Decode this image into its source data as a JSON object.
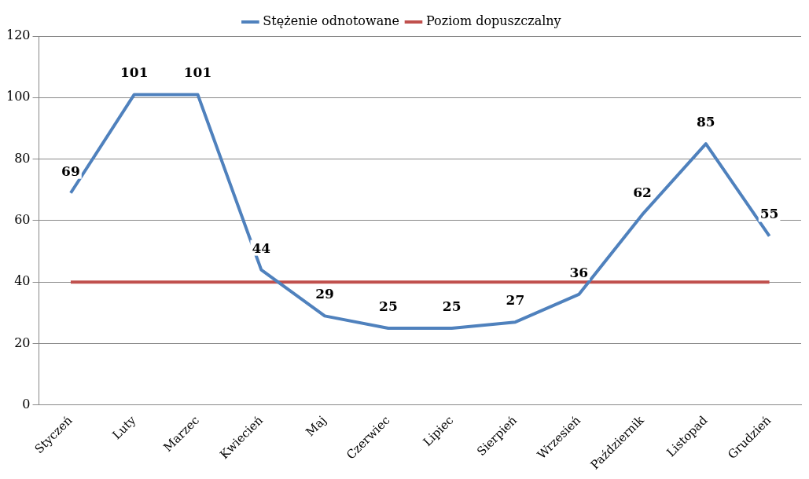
{
  "chart_data": {
    "type": "line",
    "categories": [
      "Styczeń",
      "Luty",
      "Marzec",
      "Kwiecień",
      "Maj",
      "Czerwiec",
      "Lipiec",
      "Sierpień",
      "Wrzesień",
      "Październik",
      "Listopad",
      "Grudzień"
    ],
    "series": [
      {
        "name": "Stężenie odnotowane",
        "color": "#4f81bd",
        "values": [
          69,
          101,
          101,
          44,
          29,
          25,
          25,
          27,
          36,
          62,
          85,
          55
        ],
        "value_labels": [
          "69",
          "101",
          "101",
          "44",
          "29",
          "25",
          "25",
          "27",
          "36",
          "62",
          "85",
          "55"
        ]
      },
      {
        "name": "Poziom dopuszczalny",
        "color": "#c0504d",
        "values": [
          40,
          40,
          40,
          40,
          40,
          40,
          40,
          40,
          40,
          40,
          40,
          40
        ]
      }
    ],
    "ylim": [
      0,
      120
    ],
    "yticks": [
      0,
      20,
      40,
      60,
      80,
      100,
      120
    ],
    "grid": "y",
    "legend": "top",
    "marker": "none",
    "line_style": "solid"
  }
}
